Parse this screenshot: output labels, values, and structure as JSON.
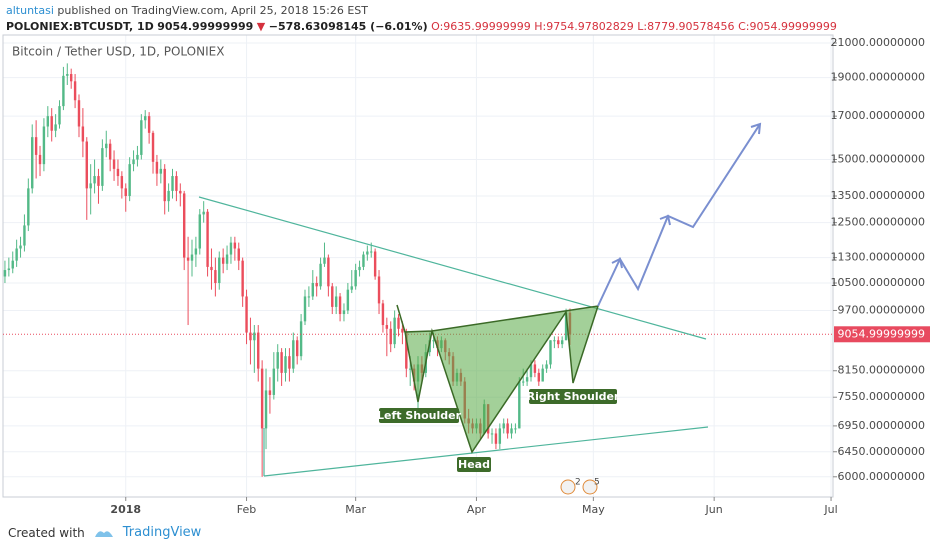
{
  "header": {
    "author": "altuntasi",
    "published": "published on TradingView.com, April 25, 2018 15:26 EST",
    "symbol": "POLONIEX:BTCUSDT, 1D",
    "last": "9054.99999999",
    "direction": "▼",
    "change": "−578.63098145 (−6.01%)",
    "open": "O:9635.99999999",
    "high": "H:9754.97802829",
    "low": "L:8779.90578456",
    "close": "C:9054.99999999"
  },
  "footer": {
    "created": "Created with",
    "brand": "TradingView"
  },
  "events": [
    "2",
    "5"
  ],
  "chart_data": {
    "type": "candlestick",
    "title": "Bitcoin / Tether USD, 1D, POLONIEX",
    "annotations": [
      "Left Shoulder",
      "Head",
      "Right Shoulder"
    ],
    "up_color": "#53b987",
    "down_color": "#eb4d5c",
    "last_price_color": "#e84a5f",
    "log_scale": true,
    "grid": true,
    "xlim": [
      -0.5,
      212.5
    ],
    "xticks": [
      {
        "value": 31,
        "label": "2018"
      },
      {
        "value": 62,
        "label": "Feb"
      },
      {
        "value": 90,
        "label": "Mar"
      },
      {
        "value": 121,
        "label": "Apr"
      },
      {
        "value": 151,
        "label": "May"
      },
      {
        "value": 182,
        "label": "Jun"
      },
      {
        "value": 212,
        "label": "Jul"
      }
    ],
    "ylim": [
      5660,
      21490
    ],
    "yticks": [
      {
        "value": 21000,
        "label": "21000.00000000"
      },
      {
        "value": 19000,
        "label": "19000.00000000"
      },
      {
        "value": 17000,
        "label": "17000.00000000"
      },
      {
        "value": 15000,
        "label": "15000.00000000"
      },
      {
        "value": 13500,
        "label": "13500.00000000"
      },
      {
        "value": 12500,
        "label": "12500.00000000"
      },
      {
        "value": 11300,
        "label": "11300.00000000"
      },
      {
        "value": 10500,
        "label": "10500.00000000"
      },
      {
        "value": 9700,
        "label": "9700.00000000"
      },
      {
        "value": 8150,
        "label": "8150.00000000"
      },
      {
        "value": 7550,
        "label": "7550.00000000"
      },
      {
        "value": 6950,
        "label": "6950.00000000"
      },
      {
        "value": 6450,
        "label": "6450.00000000"
      },
      {
        "value": 6000,
        "label": "6000.00000000"
      }
    ],
    "last_price": 9054.99999999,
    "open": [
      10700,
      10900,
      10950,
      11200,
      11600,
      11700,
      12400,
      13800,
      16000,
      15200,
      14800,
      16500,
      17000,
      16300,
      16600,
      17500,
      19100,
      19200,
      18800,
      17800,
      16500,
      15800,
      13800,
      14000,
      14300,
      13900,
      15500,
      15700,
      15000,
      14600,
      14300,
      13800,
      13500,
      14800,
      15000,
      15200,
      16800,
      17000,
      16200,
      14900,
      14400,
      14600,
      13300,
      13700,
      14300,
      13700,
      13600,
      11300,
      11200,
      11400,
      11600,
      12800,
      12900,
      11000,
      10900,
      10500,
      11300,
      11100,
      11400,
      11800,
      11600,
      11200,
      10100,
      9100,
      8900,
      9100,
      8200,
      6900,
      7700,
      7600,
      8200,
      8600,
      8100,
      8500,
      8200,
      8900,
      8500,
      9400,
      10100,
      10100,
      10500,
      10400,
      11100,
      11300,
      10400,
      9800,
      10100,
      9600,
      9700,
      10300,
      10400,
      10900,
      11000,
      11400,
      11500,
      11500,
      10700,
      9900,
      9300,
      9200,
      8800,
      9500,
      9200,
      9100,
      8200,
      8200,
      7900,
      8300,
      8100,
      8600,
      8900,
      8900,
      8700,
      8900,
      8600,
      8500,
      7900,
      8100,
      7900,
      7100,
      7000,
      6900,
      7000,
      6800,
      7400,
      6800,
      6800,
      6600,
      6900,
      7000,
      6800,
      6900,
      6900,
      7900,
      7900,
      8000,
      8300,
      8100,
      7900,
      8200,
      8300,
      8900,
      8900,
      8800,
      8900,
      9635.99999999
    ],
    "high": [
      11200,
      11300,
      11500,
      11900,
      12000,
      12800,
      14200,
      16600,
      16800,
      15600,
      16900,
      17500,
      17400,
      17100,
      17800,
      19600,
      19800,
      19500,
      19200,
      18100,
      17400,
      16000,
      14800,
      15000,
      14600,
      15900,
      16300,
      15900,
      15400,
      15000,
      14500,
      14000,
      15100,
      15400,
      15600,
      17100,
      17300,
      17200,
      16300,
      15200,
      15000,
      14800,
      14000,
      14600,
      14500,
      14000,
      13700,
      12000,
      11900,
      12000,
      13000,
      13300,
      13000,
      11600,
      11300,
      11500,
      11600,
      11700,
      12000,
      12000,
      11800,
      11300,
      10300,
      9500,
      9300,
      9300,
      8400,
      8200,
      8000,
      8600,
      8800,
      8700,
      8700,
      8700,
      9100,
      9000,
      9600,
      10300,
      10400,
      10900,
      10700,
      11300,
      11800,
      11400,
      10500,
      10400,
      10200,
      9900,
      10500,
      10900,
      11100,
      11200,
      11500,
      11700,
      11800,
      11600,
      10900,
      10000,
      9500,
      9400,
      9700,
      9600,
      9400,
      9200,
      8500,
      8300,
      8500,
      8500,
      8800,
      9100,
      9100,
      9000,
      9000,
      8950,
      8700,
      8600,
      8200,
      8200,
      8000,
      7300,
      7100,
      7100,
      7100,
      7500,
      7400,
      6900,
      6900,
      7000,
      7100,
      7100,
      7000,
      7000,
      8000,
      8200,
      8200,
      8400,
      8400,
      8200,
      8300,
      8400,
      8900,
      9000,
      9000,
      9000,
      9750,
      9754.97802829
    ],
    "low": [
      10500,
      10700,
      10800,
      11000,
      11300,
      11500,
      12200,
      13600,
      14200,
      14300,
      14500,
      16000,
      15800,
      16000,
      16400,
      17300,
      18600,
      18400,
      17400,
      16000,
      15100,
      12600,
      12800,
      13600,
      13200,
      13700,
      15100,
      14500,
      14100,
      13900,
      13400,
      12900,
      13300,
      14500,
      14700,
      15000,
      16400,
      15700,
      14400,
      13900,
      14000,
      12800,
      12900,
      13400,
      13300,
      13100,
      10900,
      9300,
      10700,
      11000,
      11400,
      12500,
      10700,
      10300,
      10100,
      10300,
      10800,
      10900,
      11100,
      11200,
      10900,
      9800,
      8800,
      8300,
      8100,
      7900,
      6000,
      6500,
      7200,
      7500,
      7900,
      7800,
      7900,
      7900,
      8100,
      8300,
      8400,
      9300,
      9800,
      10000,
      10100,
      10300,
      11000,
      10100,
      9600,
      9600,
      9400,
      9400,
      9600,
      10200,
      10300,
      10700,
      10900,
      11200,
      11300,
      10600,
      9600,
      9100,
      8500,
      8600,
      8700,
      9000,
      8800,
      8000,
      7800,
      7700,
      7300,
      7900,
      8000,
      8500,
      8700,
      8500,
      8600,
      8400,
      8300,
      7800,
      7800,
      7800,
      7000,
      6800,
      6800,
      6800,
      6700,
      6800,
      6700,
      6600,
      6500,
      6500,
      6800,
      6700,
      6700,
      6800,
      6900,
      7800,
      7800,
      7900,
      8000,
      7800,
      7900,
      8100,
      8200,
      8700,
      8700,
      8700,
      8900,
      8779.90578456
    ],
    "close": [
      10900,
      10950,
      11200,
      11600,
      11700,
      12400,
      13800,
      16000,
      15200,
      14800,
      16500,
      17000,
      16300,
      16600,
      17500,
      19100,
      19200,
      18800,
      17800,
      16500,
      15800,
      13800,
      14000,
      14300,
      13900,
      15500,
      15700,
      15000,
      14600,
      14300,
      13800,
      13500,
      14800,
      15000,
      15200,
      16800,
      17000,
      16200,
      14900,
      14400,
      14600,
      13300,
      13700,
      14300,
      13700,
      13600,
      11300,
      11200,
      11400,
      11600,
      12800,
      12900,
      11000,
      10900,
      10500,
      11300,
      11100,
      11400,
      11800,
      11600,
      11200,
      10100,
      9100,
      8900,
      9100,
      8200,
      6900,
      7700,
      7600,
      8200,
      8600,
      8100,
      8500,
      8200,
      8900,
      8500,
      9400,
      10100,
      10100,
      10500,
      10400,
      11100,
      11300,
      10400,
      9800,
      10100,
      9600,
      9700,
      10300,
      10400,
      10900,
      11000,
      11400,
      11500,
      11500,
      10700,
      9900,
      9300,
      9200,
      8800,
      9500,
      9200,
      9100,
      8200,
      8200,
      7900,
      8300,
      8100,
      8600,
      8900,
      8900,
      8700,
      8900,
      8600,
      8500,
      7900,
      8100,
      7900,
      7100,
      7000,
      6900,
      7000,
      6800,
      7400,
      6800,
      6800,
      6600,
      6900,
      7000,
      6800,
      6900,
      6900,
      7900,
      7900,
      8000,
      8300,
      8100,
      7900,
      8200,
      8300,
      8900,
      8900,
      8800,
      8900,
      9635.99999999,
      9054.99999999
    ]
  }
}
